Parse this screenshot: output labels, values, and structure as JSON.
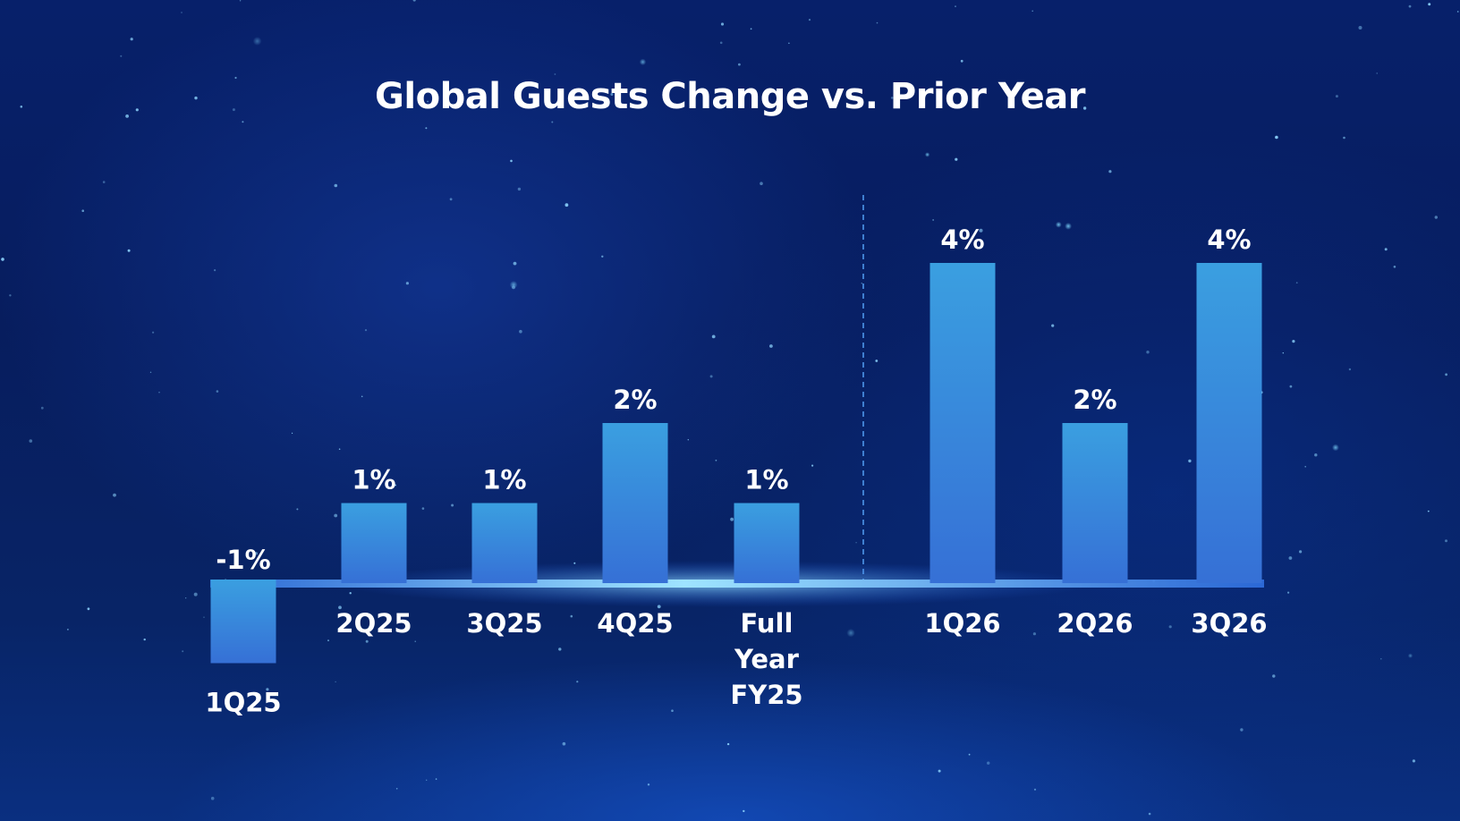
{
  "colors": {
    "bar_top": "#3a9fe0",
    "bar_bottom": "#3670d6",
    "divider": "#3f7fd0",
    "baseline_glow": "#7fd2ff",
    "text": "#ffffff"
  },
  "chart_data": {
    "type": "bar",
    "title": "Global Guests Change vs. Prior Year",
    "xlabel": "",
    "ylabel": "",
    "ylim": [
      -1,
      4
    ],
    "grid": false,
    "legend": "none",
    "unit": "%",
    "categories": [
      [
        "1Q25"
      ],
      [
        "2Q25"
      ],
      [
        "3Q25"
      ],
      [
        "4Q25"
      ],
      [
        "Full",
        "Year",
        "FY25"
      ],
      [
        "1Q26"
      ],
      [
        "2Q26"
      ],
      [
        "3Q26"
      ]
    ],
    "values": [
      -1,
      1,
      1,
      2,
      1,
      4,
      2,
      4
    ],
    "data_labels": [
      "-1%",
      "1%",
      "1%",
      "2%",
      "1%",
      "4%",
      "2%",
      "4%"
    ],
    "divider_after_index": 4
  }
}
